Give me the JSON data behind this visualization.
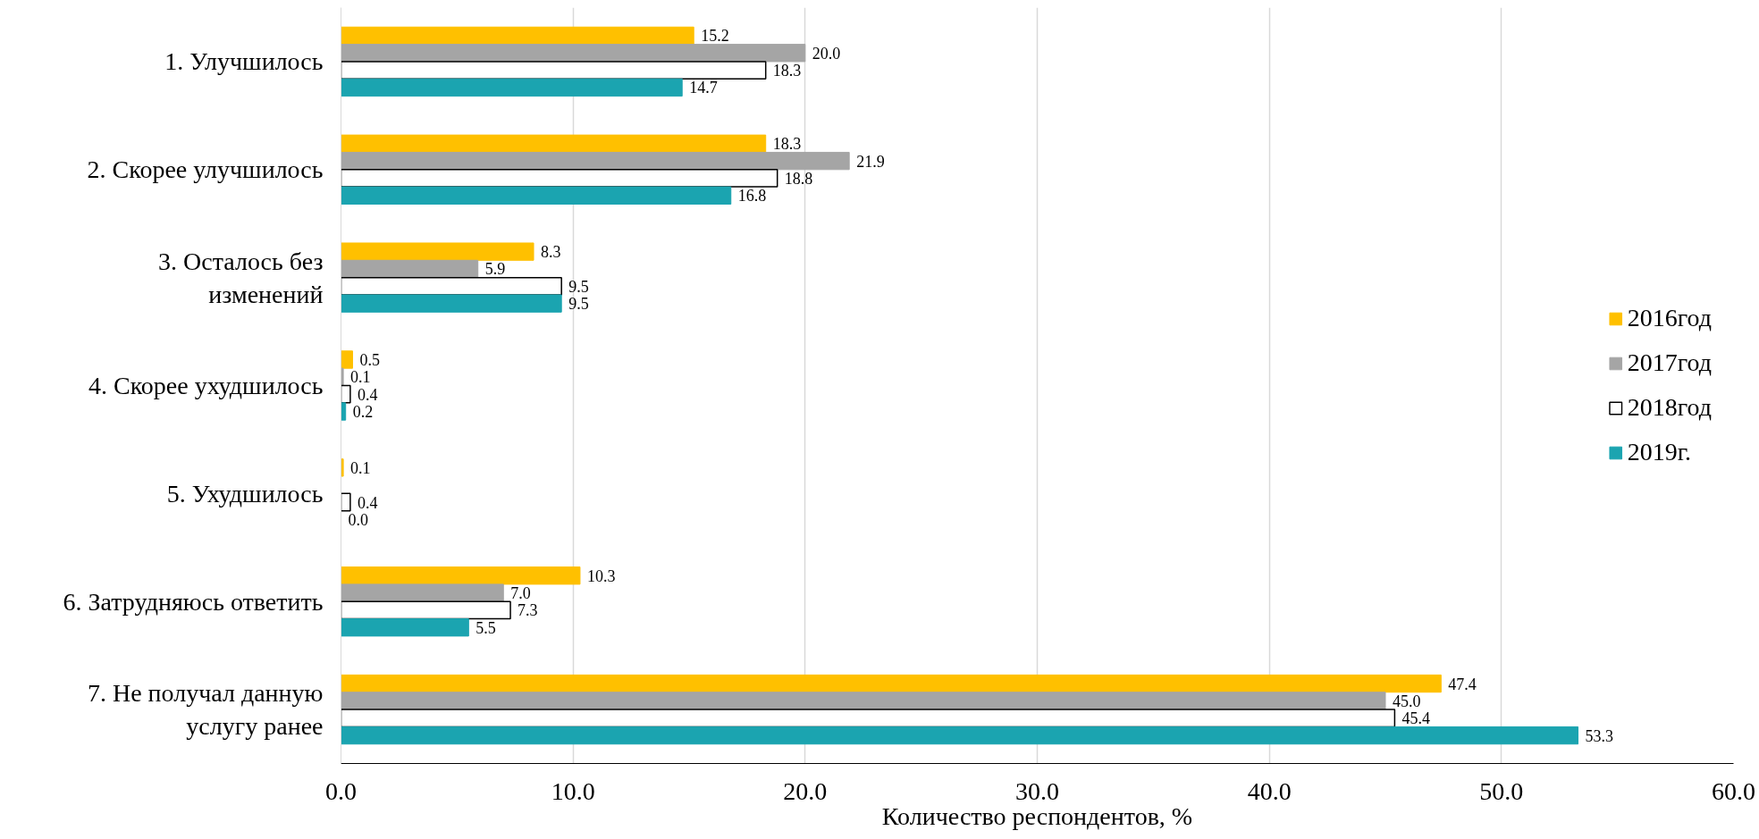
{
  "chart_data": {
    "type": "bar",
    "orientation": "horizontal",
    "categories": [
      "1. Улучшилось",
      "2. Скорее улучшилось",
      "3. Осталось без изменений",
      "4. Скорее ухудшилось",
      "5. Ухудшилось",
      "6. Затрудняюсь ответить",
      "7. Не получал данную услугу ранее"
    ],
    "series": [
      {
        "name": "2016год",
        "color": "#ffc000",
        "values": [
          15.2,
          18.3,
          8.3,
          0.5,
          0.1,
          10.3,
          47.4
        ],
        "value_labels": [
          "15.2",
          "18.3",
          "8.3",
          "0.5",
          "0.1",
          "10.3",
          "47.4"
        ]
      },
      {
        "name": "2017год",
        "color": "#a5a5a5",
        "values": [
          20.0,
          21.9,
          5.9,
          0.1,
          null,
          7.0,
          45.0
        ],
        "value_labels": [
          "20.0",
          "21.9",
          "5.9",
          "0.1",
          null,
          "7.0",
          "45.0"
        ]
      },
      {
        "name": "2018год",
        "color": "#ffffff",
        "values": [
          18.3,
          18.8,
          9.5,
          0.4,
          0.4,
          7.3,
          45.4
        ],
        "value_labels": [
          "18.3",
          "18.8",
          "9.5",
          "0.4",
          "0.4",
          "7.3",
          "45.4"
        ]
      },
      {
        "name": "2019г.",
        "color": "#1ba4b0",
        "values": [
          14.7,
          16.8,
          9.5,
          0.2,
          0.0,
          5.5,
          53.3
        ],
        "value_labels": [
          "14.7",
          "16.8",
          "9.5",
          "0.2",
          "0.0",
          "5.5",
          "53.3"
        ]
      }
    ],
    "xlabel": "Количество респондентов, %",
    "xlim": [
      0,
      60
    ],
    "xticks": [
      {
        "value": 0,
        "label": "0.0"
      },
      {
        "value": 10,
        "label": "10.0"
      },
      {
        "value": 20,
        "label": "20.0"
      },
      {
        "value": 30,
        "label": "30.0"
      },
      {
        "value": 40,
        "label": "40.0"
      },
      {
        "value": 50,
        "label": "50.0"
      },
      {
        "value": 60,
        "label": "60.0"
      }
    ],
    "grid": "x",
    "legend": "right"
  }
}
